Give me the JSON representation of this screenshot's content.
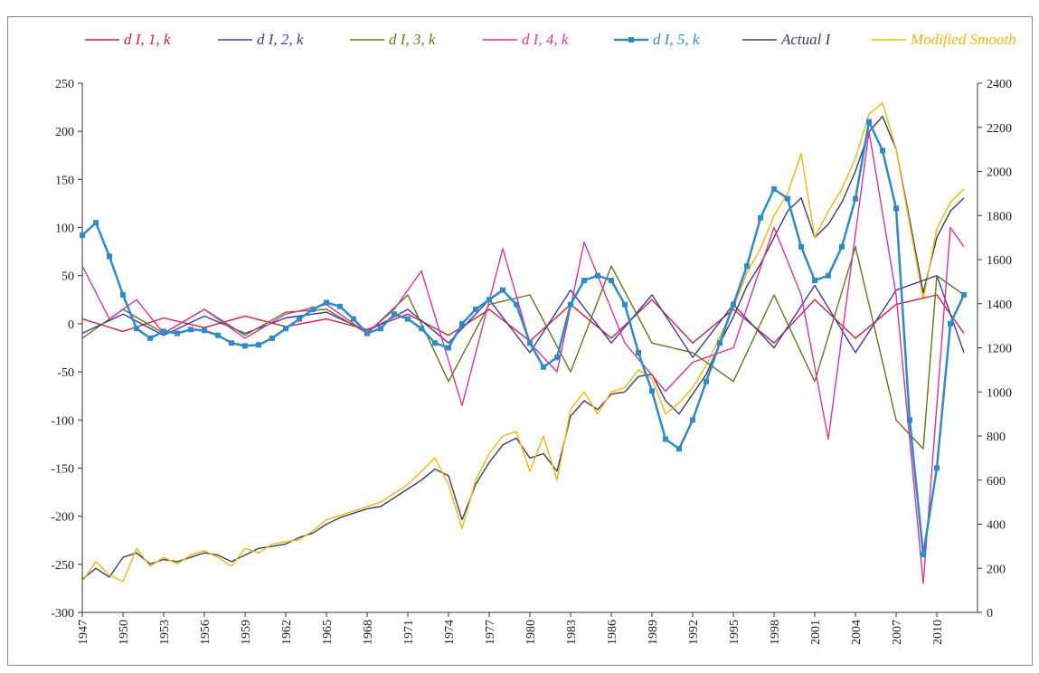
{
  "chart_data": {
    "type": "line",
    "title": "",
    "xlabel": "",
    "ylabel": "",
    "y_left_lim": [
      -300,
      250
    ],
    "y_left_ticks": [
      250,
      200,
      150,
      100,
      50,
      0,
      -50,
      -100,
      -150,
      -200,
      -250,
      -300
    ],
    "y_right_lim": [
      0,
      2400
    ],
    "y_right_ticks": [
      2400,
      2200,
      2000,
      1800,
      1600,
      1400,
      1200,
      1000,
      800,
      600,
      400,
      200,
      0
    ],
    "x_range": [
      1947,
      2013
    ],
    "x_ticks": [
      "1947",
      "1950",
      "1953",
      "1956",
      "1959",
      "1962",
      "1965",
      "1968",
      "1971",
      "1974",
      "1977",
      "1980",
      "1983",
      "1986",
      "1989",
      "1992",
      "1995",
      "1998",
      "2001",
      "2004",
      "2007",
      "2010"
    ],
    "grid": false,
    "legend_position": "top",
    "series": [
      {
        "name": "d I, 1, k",
        "color": "#d81b3f",
        "axis": "left",
        "marker": "none",
        "x": [
          1947,
          1950,
          1953,
          1956,
          1959,
          1962,
          1965,
          1968,
          1971,
          1974,
          1977,
          1980,
          1983,
          1986,
          1989,
          1992,
          1995,
          1998,
          2001,
          2004,
          2007,
          2010,
          2012
        ],
        "y": [
          5,
          -8,
          6,
          -4,
          8,
          -3,
          5,
          -6,
          10,
          -12,
          15,
          -18,
          20,
          -15,
          25,
          -20,
          15,
          -20,
          25,
          -15,
          20,
          30,
          -10
        ]
      },
      {
        "name": "d I, 2, k",
        "color": "#3e3a9e",
        "axis": "left",
        "marker": "none",
        "x": [
          1947,
          1950,
          1953,
          1956,
          1959,
          1962,
          1965,
          1968,
          1971,
          1974,
          1977,
          1980,
          1983,
          1986,
          1989,
          1992,
          1995,
          1998,
          2001,
          2004,
          2007,
          2010,
          2012
        ],
        "y": [
          -10,
          10,
          -12,
          8,
          -10,
          6,
          12,
          -8,
          15,
          -20,
          25,
          -30,
          35,
          -20,
          30,
          -35,
          20,
          -25,
          40,
          -30,
          35,
          50,
          -30
        ]
      },
      {
        "name": "d I, 3, k",
        "color": "#5d7a1a",
        "axis": "left",
        "marker": "none",
        "x": [
          1947,
          1950,
          1953,
          1956,
          1959,
          1962,
          1965,
          1968,
          1971,
          1974,
          1977,
          1980,
          1983,
          1986,
          1989,
          1992,
          1995,
          1998,
          2001,
          2004,
          2007,
          2009,
          2010,
          2012
        ],
        "y": [
          -15,
          15,
          -10,
          15,
          -12,
          12,
          15,
          -10,
          30,
          -60,
          20,
          30,
          -50,
          60,
          -20,
          -30,
          -60,
          30,
          -60,
          80,
          -100,
          -130,
          50,
          30
        ]
      },
      {
        "name": "d I, 4, k",
        "color": "#e0309a",
        "axis": "left",
        "marker": "none",
        "x": [
          1947,
          1949,
          1951,
          1953,
          1956,
          1959,
          1962,
          1965,
          1968,
          1970,
          1972,
          1975,
          1978,
          1980,
          1982,
          1984,
          1987,
          1990,
          1992,
          1995,
          1998,
          2000,
          2002,
          2005,
          2007,
          2009,
          2011,
          2012
        ],
        "y": [
          60,
          5,
          25,
          -10,
          15,
          -15,
          10,
          20,
          -10,
          15,
          55,
          -85,
          78,
          -20,
          -50,
          85,
          -20,
          -70,
          -40,
          -25,
          100,
          30,
          -120,
          200,
          30,
          -270,
          100,
          80
        ]
      },
      {
        "name": "d I, 5, k",
        "color": "#2e8bc9",
        "axis": "left",
        "marker": "square",
        "x": [
          1947,
          1948,
          1949,
          1950,
          1951,
          1952,
          1953,
          1954,
          1955,
          1956,
          1957,
          1958,
          1959,
          1960,
          1961,
          1962,
          1963,
          1964,
          1965,
          1966,
          1967,
          1968,
          1969,
          1970,
          1971,
          1972,
          1973,
          1974,
          1975,
          1976,
          1977,
          1978,
          1979,
          1980,
          1981,
          1982,
          1983,
          1984,
          1985,
          1986,
          1987,
          1988,
          1989,
          1990,
          1991,
          1992,
          1993,
          1994,
          1995,
          1996,
          1997,
          1998,
          1999,
          2000,
          2001,
          2002,
          2003,
          2004,
          2005,
          2006,
          2007,
          2008,
          2009,
          2010,
          2011,
          2012
        ],
        "y": [
          92,
          105,
          70,
          30,
          -5,
          -15,
          -8,
          -10,
          -6,
          -7,
          -12,
          -20,
          -23,
          -22,
          -15,
          -5,
          5,
          15,
          22,
          18,
          5,
          -10,
          -5,
          10,
          5,
          -5,
          -20,
          -25,
          0,
          15,
          25,
          35,
          20,
          -20,
          -45,
          -35,
          20,
          45,
          50,
          45,
          20,
          -30,
          -70,
          -120,
          -130,
          -100,
          -60,
          -20,
          20,
          60,
          110,
          140,
          130,
          80,
          45,
          50,
          80,
          130,
          210,
          180,
          120,
          -100,
          -240,
          -150,
          0,
          30
        ]
      },
      {
        "name": "Actual I",
        "color": "#3b3b6e",
        "axis": "right",
        "marker": "none",
        "x": [
          1947,
          1948,
          1949,
          1950,
          1951,
          1952,
          1953,
          1954,
          1955,
          1956,
          1957,
          1958,
          1959,
          1960,
          1961,
          1962,
          1963,
          1964,
          1965,
          1966,
          1967,
          1968,
          1969,
          1970,
          1971,
          1972,
          1973,
          1974,
          1975,
          1976,
          1977,
          1978,
          1979,
          1980,
          1981,
          1982,
          1983,
          1984,
          1985,
          1986,
          1987,
          1988,
          1989,
          1990,
          1991,
          1992,
          1993,
          1994,
          1995,
          1996,
          1997,
          1998,
          1999,
          2000,
          2001,
          2002,
          2003,
          2004,
          2005,
          2006,
          2007,
          2008,
          2009,
          2010,
          2011,
          2012
        ],
        "y": [
          150,
          200,
          160,
          250,
          270,
          220,
          240,
          230,
          250,
          270,
          260,
          230,
          260,
          290,
          300,
          310,
          340,
          360,
          400,
          430,
          450,
          470,
          480,
          520,
          560,
          600,
          650,
          620,
          420,
          580,
          680,
          760,
          790,
          700,
          720,
          640,
          890,
          960,
          920,
          990,
          1000,
          1070,
          1080,
          960,
          900,
          990,
          1080,
          1220,
          1340,
          1480,
          1580,
          1700,
          1820,
          1880,
          1700,
          1760,
          1860,
          2000,
          2180,
          2250,
          2100,
          1780,
          1450,
          1700,
          1820,
          1880
        ]
      },
      {
        "name": "Modified Smooth",
        "color": "#f2b705",
        "axis": "right",
        "marker": "none",
        "x": [
          1947,
          1948,
          1949,
          1950,
          1951,
          1952,
          1953,
          1954,
          1955,
          1956,
          1957,
          1958,
          1959,
          1960,
          1961,
          1962,
          1963,
          1964,
          1965,
          1966,
          1967,
          1968,
          1969,
          1970,
          1971,
          1972,
          1973,
          1974,
          1975,
          1976,
          1977,
          1978,
          1979,
          1980,
          1981,
          1982,
          1983,
          1984,
          1985,
          1986,
          1987,
          1988,
          1989,
          1990,
          1991,
          1992,
          1993,
          1994,
          1995,
          1996,
          1997,
          1998,
          1999,
          2000,
          2001,
          2002,
          2003,
          2004,
          2005,
          2006,
          2007,
          2008,
          2009,
          2010,
          2011,
          2012
        ],
        "y": [
          140,
          230,
          170,
          140,
          290,
          210,
          250,
          220,
          260,
          280,
          250,
          210,
          290,
          270,
          310,
          320,
          330,
          370,
          420,
          440,
          460,
          480,
          500,
          540,
          580,
          640,
          700,
          580,
          380,
          600,
          720,
          800,
          820,
          640,
          800,
          600,
          920,
          1000,
          900,
          1000,
          1020,
          1100,
          1060,
          900,
          950,
          1020,
          1120,
          1250,
          1380,
          1540,
          1650,
          1800,
          1900,
          2080,
          1700,
          1820,
          1920,
          2060,
          2260,
          2310,
          2100,
          1760,
          1420,
          1740,
          1860,
          1920
        ]
      }
    ]
  }
}
